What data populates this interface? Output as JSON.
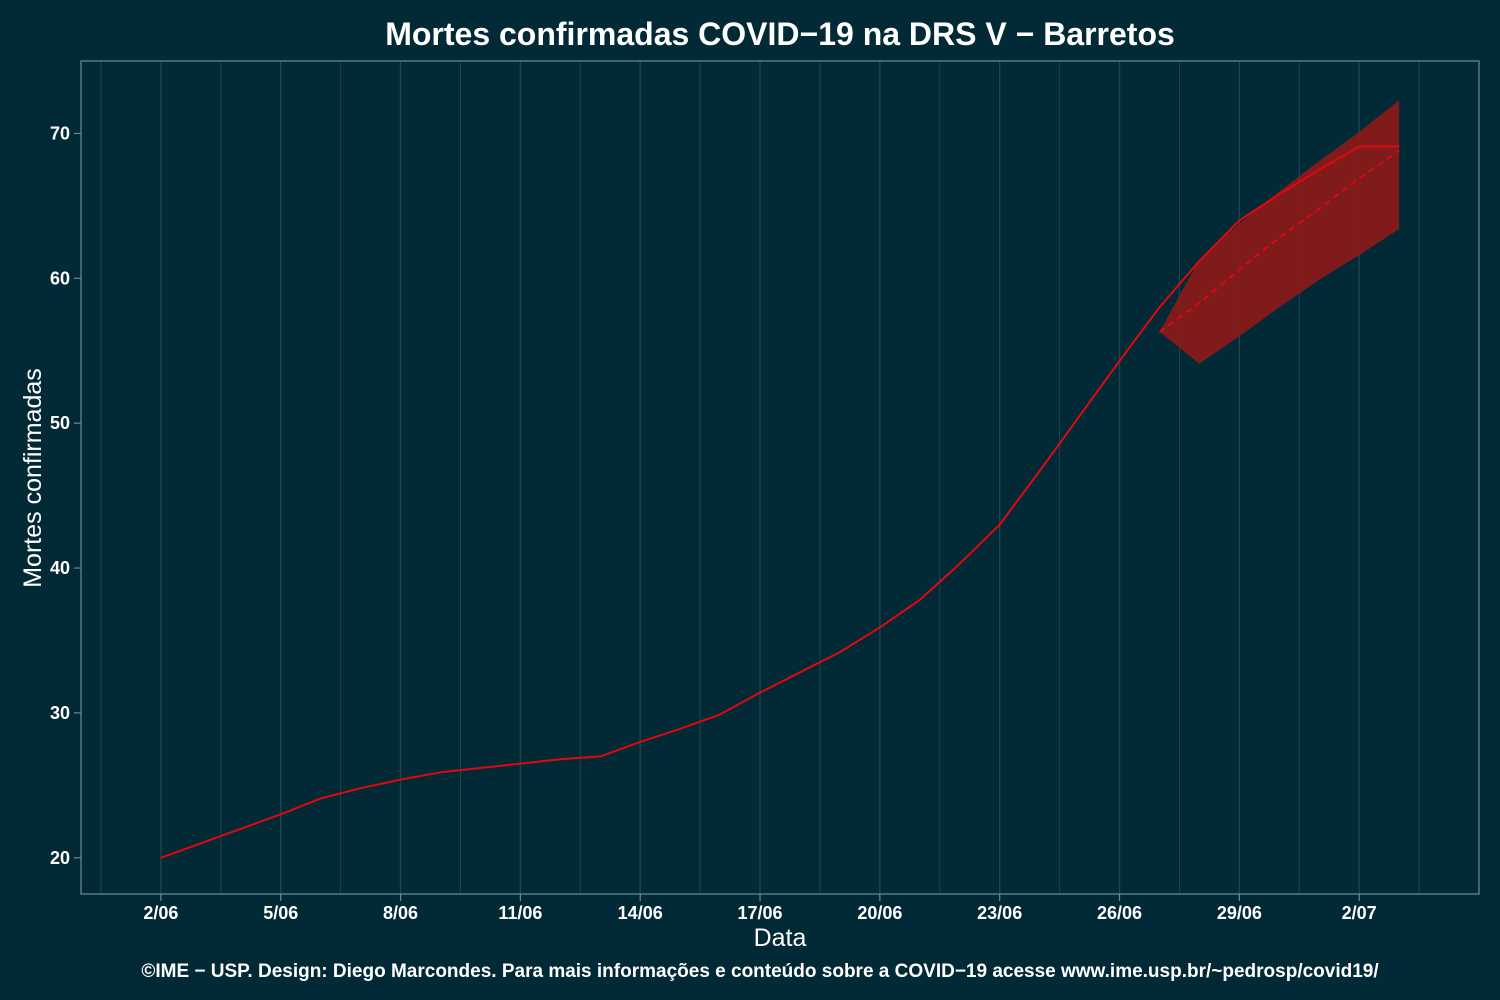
{
  "chart_data": {
    "type": "line",
    "title": "Mortes confirmadas COVID−19 na DRS V − Barretos",
    "xlabel": "Data",
    "ylabel": "Mortes confirmadas",
    "caption": "©IME − USP. Design: Diego Marcondes. Para mais informações e conteúdo sobre a COVID−19 acesse www.ime.usp.br/~pedrosp/covid19/",
    "x_tick_labels": [
      "2/06",
      "5/06",
      "8/06",
      "11/06",
      "14/06",
      "17/06",
      "20/06",
      "23/06",
      "26/06",
      "29/06",
      "2/07"
    ],
    "x_tick_dates": [
      "2020-06-02",
      "2020-06-05",
      "2020-06-08",
      "2020-06-11",
      "2020-06-14",
      "2020-06-17",
      "2020-06-20",
      "2020-06-23",
      "2020-06-26",
      "2020-06-29",
      "2020-07-02"
    ],
    "xlim": [
      "2020-05-31",
      "2020-07-05"
    ],
    "ylim": [
      17.5,
      75
    ],
    "y_ticks": [
      20,
      30,
      40,
      50,
      60,
      70
    ],
    "grid": "vertical",
    "colors": {
      "background": "#022a36",
      "line": "#e0080f",
      "band": "#8b1a1a",
      "grid": "#1f4450",
      "frame": "#6f8a92",
      "text": "#ffffff"
    },
    "series": [
      {
        "style": "solid",
        "x": [
          "2020-06-02",
          "2020-06-03",
          "2020-06-04",
          "2020-06-05",
          "2020-06-06",
          "2020-06-07",
          "2020-06-08",
          "2020-06-09",
          "2020-06-10",
          "2020-06-11",
          "2020-06-12",
          "2020-06-13",
          "2020-06-14",
          "2020-06-15",
          "2020-06-16",
          "2020-06-17",
          "2020-06-18",
          "2020-06-19",
          "2020-06-20",
          "2020-06-21",
          "2020-06-22",
          "2020-06-23",
          "2020-06-24",
          "2020-06-25",
          "2020-06-26",
          "2020-06-27",
          "2020-06-28",
          "2020-06-29",
          "2020-06-30",
          "2020-07-01",
          "2020-07-02",
          "2020-07-03"
        ],
        "y": [
          20,
          21,
          22,
          23,
          24.1,
          24.8,
          25.4,
          25.9,
          26.2,
          26.5,
          26.8,
          27,
          28,
          28.9,
          29.9,
          31.4,
          32.8,
          34.2,
          35.9,
          37.8,
          40.3,
          43,
          46.7,
          50.5,
          54.3,
          58,
          61.2,
          64,
          65.8,
          67.5,
          69.1,
          69.1
        ]
      },
      {
        "style": "dashed",
        "x": [
          "2020-06-27",
          "2020-06-28",
          "2020-06-29",
          "2020-06-30",
          "2020-07-01",
          "2020-07-02",
          "2020-07-03"
        ],
        "y": [
          56.3,
          58.3,
          60.6,
          62.8,
          64.8,
          66.9,
          68.8
        ]
      }
    ],
    "band": {
      "x": [
        "2020-06-27",
        "2020-06-28",
        "2020-06-29",
        "2020-06-30",
        "2020-07-01",
        "2020-07-02",
        "2020-07-03"
      ],
      "lower": [
        56.3,
        54.1,
        56.0,
        58.0,
        59.9,
        61.6,
        63.4
      ],
      "upper": [
        56.3,
        61.3,
        63.8,
        66.0,
        68.1,
        70.1,
        72.3
      ]
    }
  }
}
